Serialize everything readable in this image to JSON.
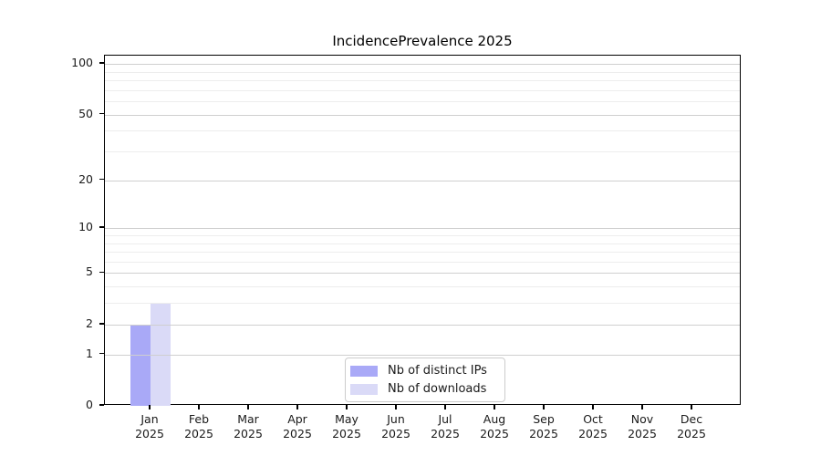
{
  "title": "IncidencePrevalence 2025",
  "legend": {
    "items": [
      {
        "label": "Nb of distinct IPs",
        "color": "#a9a9f7"
      },
      {
        "label": "Nb of downloads",
        "color": "#dadaf7"
      }
    ]
  },
  "chart_data": {
    "type": "bar",
    "title": "IncidencePrevalence 2025",
    "categories": [
      "Jan",
      "Feb",
      "Mar",
      "Apr",
      "May",
      "Jun",
      "Jul",
      "Aug",
      "Sep",
      "Oct",
      "Nov",
      "Dec"
    ],
    "category_year": "2025",
    "series": [
      {
        "name": "Nb of distinct IPs",
        "color": "#a9a9f7",
        "values": [
          2,
          0,
          0,
          0,
          0,
          0,
          0,
          0,
          0,
          0,
          0,
          0
        ]
      },
      {
        "name": "Nb of downloads",
        "color": "#dadaf7",
        "values": [
          3,
          0,
          0,
          0,
          0,
          0,
          0,
          0,
          0,
          0,
          0,
          0
        ]
      }
    ],
    "xlabel": "",
    "ylabel": "",
    "y_scale": "log1p",
    "y_major_ticks": [
      0,
      1,
      2,
      5,
      10,
      20,
      50,
      100
    ],
    "y_minor_gridlines": [
      3,
      4,
      6,
      7,
      8,
      9,
      30,
      40,
      60,
      70,
      80,
      90
    ],
    "ylim": [
      0,
      112
    ],
    "grid": "horizontal",
    "legend_position": "inside-bottom-center",
    "colors": {
      "major_grid": "#cfcfcf",
      "minor_grid": "#ededed",
      "axis": "#000000",
      "background": "#ffffff",
      "text": "#1a1a1a"
    }
  }
}
